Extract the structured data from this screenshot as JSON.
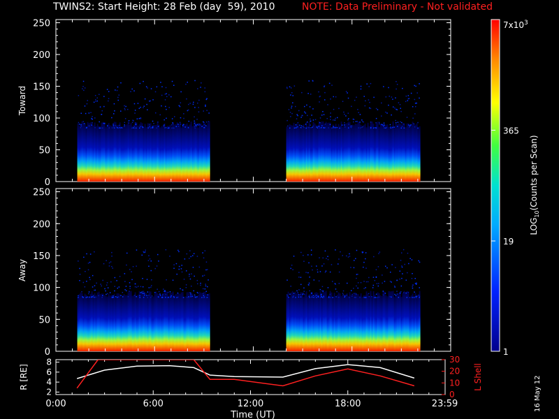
{
  "header": {
    "title": "TWINS2: Start Height: 28 Feb (day  59), 2010",
    "note": "NOTE: Data Preliminary - Not validated"
  },
  "stamp": "16 May 12",
  "colors": {
    "background": "#000000",
    "axes": "#ffffff",
    "note": "#ff2020",
    "r_line": "#ffffff",
    "lshell_line": "#ff2020"
  },
  "colorbar": {
    "label": "LOG10(Counts per Scan)",
    "ticks": [
      "1",
      "19",
      "365",
      "7x10^3"
    ],
    "scale": "log"
  },
  "chart_data": [
    {
      "type": "heatmap",
      "panel": "toward",
      "ylabel": "Toward",
      "ylim": [
        0,
        255
      ],
      "yticks": [
        "0",
        "50",
        "100",
        "150",
        "200",
        "250"
      ],
      "xlim_hours": [
        0,
        24
      ],
      "data_intervals_hours": [
        [
          1.3,
          9.3
        ],
        [
          14.0,
          22.1
        ]
      ]
    },
    {
      "type": "heatmap",
      "panel": "away",
      "ylabel": "Away",
      "ylim": [
        0,
        255
      ],
      "yticks": [
        "0",
        "50",
        "100",
        "150",
        "200",
        "250"
      ],
      "xlim_hours": [
        0,
        24
      ],
      "data_intervals_hours": [
        [
          1.3,
          9.3
        ],
        [
          14.0,
          22.1
        ]
      ]
    },
    {
      "type": "line",
      "panel": "orbit",
      "ylabel_left": "R [RE]",
      "ylabel_right": "L Shell",
      "xlabel": "Time (UT)",
      "xticks": [
        "0:00",
        "6:00",
        "12:00",
        "18:00",
        "23:59"
      ],
      "yticks_left": [
        "2",
        "4",
        "6",
        "8"
      ],
      "yticks_right": [
        "0",
        "10",
        "20",
        "30"
      ],
      "ylim_left": [
        1.5,
        8.5
      ],
      "ylim_right": [
        0,
        30
      ],
      "series": [
        {
          "name": "R",
          "axis": "left",
          "x": [
            1.3,
            3,
            5,
            7,
            8.5,
            9.5,
            11,
            14,
            16,
            18,
            20,
            22.1
          ],
          "y": [
            4.7,
            6.4,
            7.2,
            7.3,
            6.9,
            5.4,
            5.1,
            5.0,
            6.7,
            7.5,
            6.9,
            4.8
          ]
        },
        {
          "name": "L Shell",
          "axis": "right",
          "x": [
            1.3,
            2.6,
            8.5,
            9.5,
            11,
            14,
            16,
            18,
            20,
            22.1
          ],
          "y": [
            5.5,
            30,
            30,
            13,
            13,
            7.5,
            16,
            22,
            16,
            7.5
          ]
        }
      ]
    }
  ]
}
